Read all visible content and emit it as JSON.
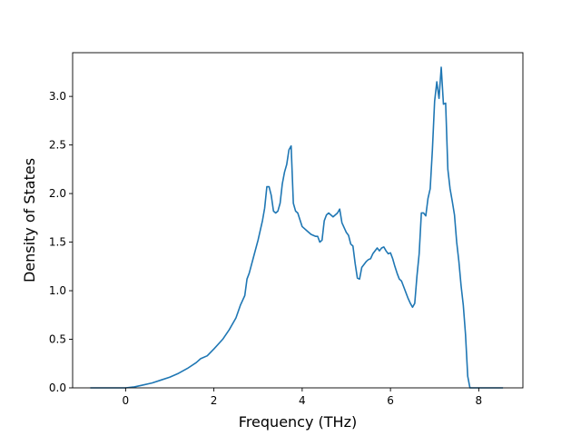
{
  "chart_data": {
    "type": "line",
    "title": "",
    "xlabel": "Frequency (THz)",
    "ylabel": "Density of States",
    "xlim": [
      -1.2,
      9.0
    ],
    "ylim": [
      0.0,
      3.45
    ],
    "xticks": [
      0,
      2,
      4,
      6,
      8
    ],
    "yticks": [
      0.0,
      0.5,
      1.0,
      1.5,
      2.0,
      2.5,
      3.0
    ],
    "xtick_labels": [
      "0",
      "2",
      "4",
      "6",
      "8"
    ],
    "ytick_labels": [
      "0.0",
      "0.5",
      "1.0",
      "1.5",
      "2.0",
      "2.5",
      "3.0"
    ],
    "grid": false,
    "legend": "none",
    "series": [
      {
        "color": "#1f77b4",
        "x": [
          -0.8,
          -0.4,
          0.0,
          0.2,
          0.4,
          0.6,
          0.8,
          1.0,
          1.2,
          1.4,
          1.6,
          1.7,
          1.85,
          2.0,
          2.2,
          2.35,
          2.5,
          2.6,
          2.7,
          2.75,
          2.8,
          2.9,
          3.0,
          3.05,
          3.1,
          3.15,
          3.2,
          3.25,
          3.3,
          3.35,
          3.4,
          3.45,
          3.5,
          3.55,
          3.6,
          3.65,
          3.7,
          3.75,
          3.8,
          3.85,
          3.9,
          4.0,
          4.1,
          4.2,
          4.3,
          4.35,
          4.4,
          4.45,
          4.5,
          4.55,
          4.6,
          4.7,
          4.8,
          4.85,
          4.9,
          5.0,
          5.05,
          5.1,
          5.15,
          5.2,
          5.25,
          5.3,
          5.35,
          5.45,
          5.5,
          5.55,
          5.6,
          5.7,
          5.75,
          5.8,
          5.85,
          5.9,
          5.95,
          6.0,
          6.05,
          6.1,
          6.15,
          6.2,
          6.25,
          6.3,
          6.35,
          6.4,
          6.45,
          6.5,
          6.55,
          6.6,
          6.65,
          6.7,
          6.75,
          6.8,
          6.85,
          6.9,
          6.95,
          7.0,
          7.05,
          7.1,
          7.15,
          7.2,
          7.25,
          7.3,
          7.35,
          7.4,
          7.45,
          7.5,
          7.55,
          7.6,
          7.65,
          7.7,
          7.75,
          7.8,
          8.0,
          8.55
        ],
        "y": [
          0.0,
          0.0,
          0.0,
          0.01,
          0.03,
          0.05,
          0.08,
          0.11,
          0.15,
          0.2,
          0.26,
          0.3,
          0.33,
          0.4,
          0.5,
          0.6,
          0.72,
          0.85,
          0.95,
          1.12,
          1.18,
          1.35,
          1.52,
          1.62,
          1.72,
          1.85,
          2.07,
          2.07,
          1.98,
          1.82,
          1.8,
          1.82,
          1.9,
          2.1,
          2.22,
          2.3,
          2.45,
          2.49,
          1.9,
          1.82,
          1.8,
          1.66,
          1.62,
          1.58,
          1.56,
          1.56,
          1.5,
          1.52,
          1.72,
          1.78,
          1.8,
          1.76,
          1.8,
          1.84,
          1.7,
          1.6,
          1.57,
          1.48,
          1.46,
          1.28,
          1.13,
          1.12,
          1.24,
          1.3,
          1.32,
          1.33,
          1.38,
          1.44,
          1.41,
          1.44,
          1.45,
          1.41,
          1.38,
          1.39,
          1.33,
          1.25,
          1.18,
          1.12,
          1.1,
          1.04,
          0.98,
          0.92,
          0.87,
          0.83,
          0.87,
          1.15,
          1.38,
          1.8,
          1.8,
          1.77,
          1.95,
          2.05,
          2.45,
          2.95,
          3.15,
          2.98,
          3.3,
          2.92,
          2.93,
          2.25,
          2.05,
          1.92,
          1.78,
          1.5,
          1.3,
          1.05,
          0.85,
          0.55,
          0.12,
          0.0,
          0.0,
          0.0
        ]
      }
    ]
  }
}
